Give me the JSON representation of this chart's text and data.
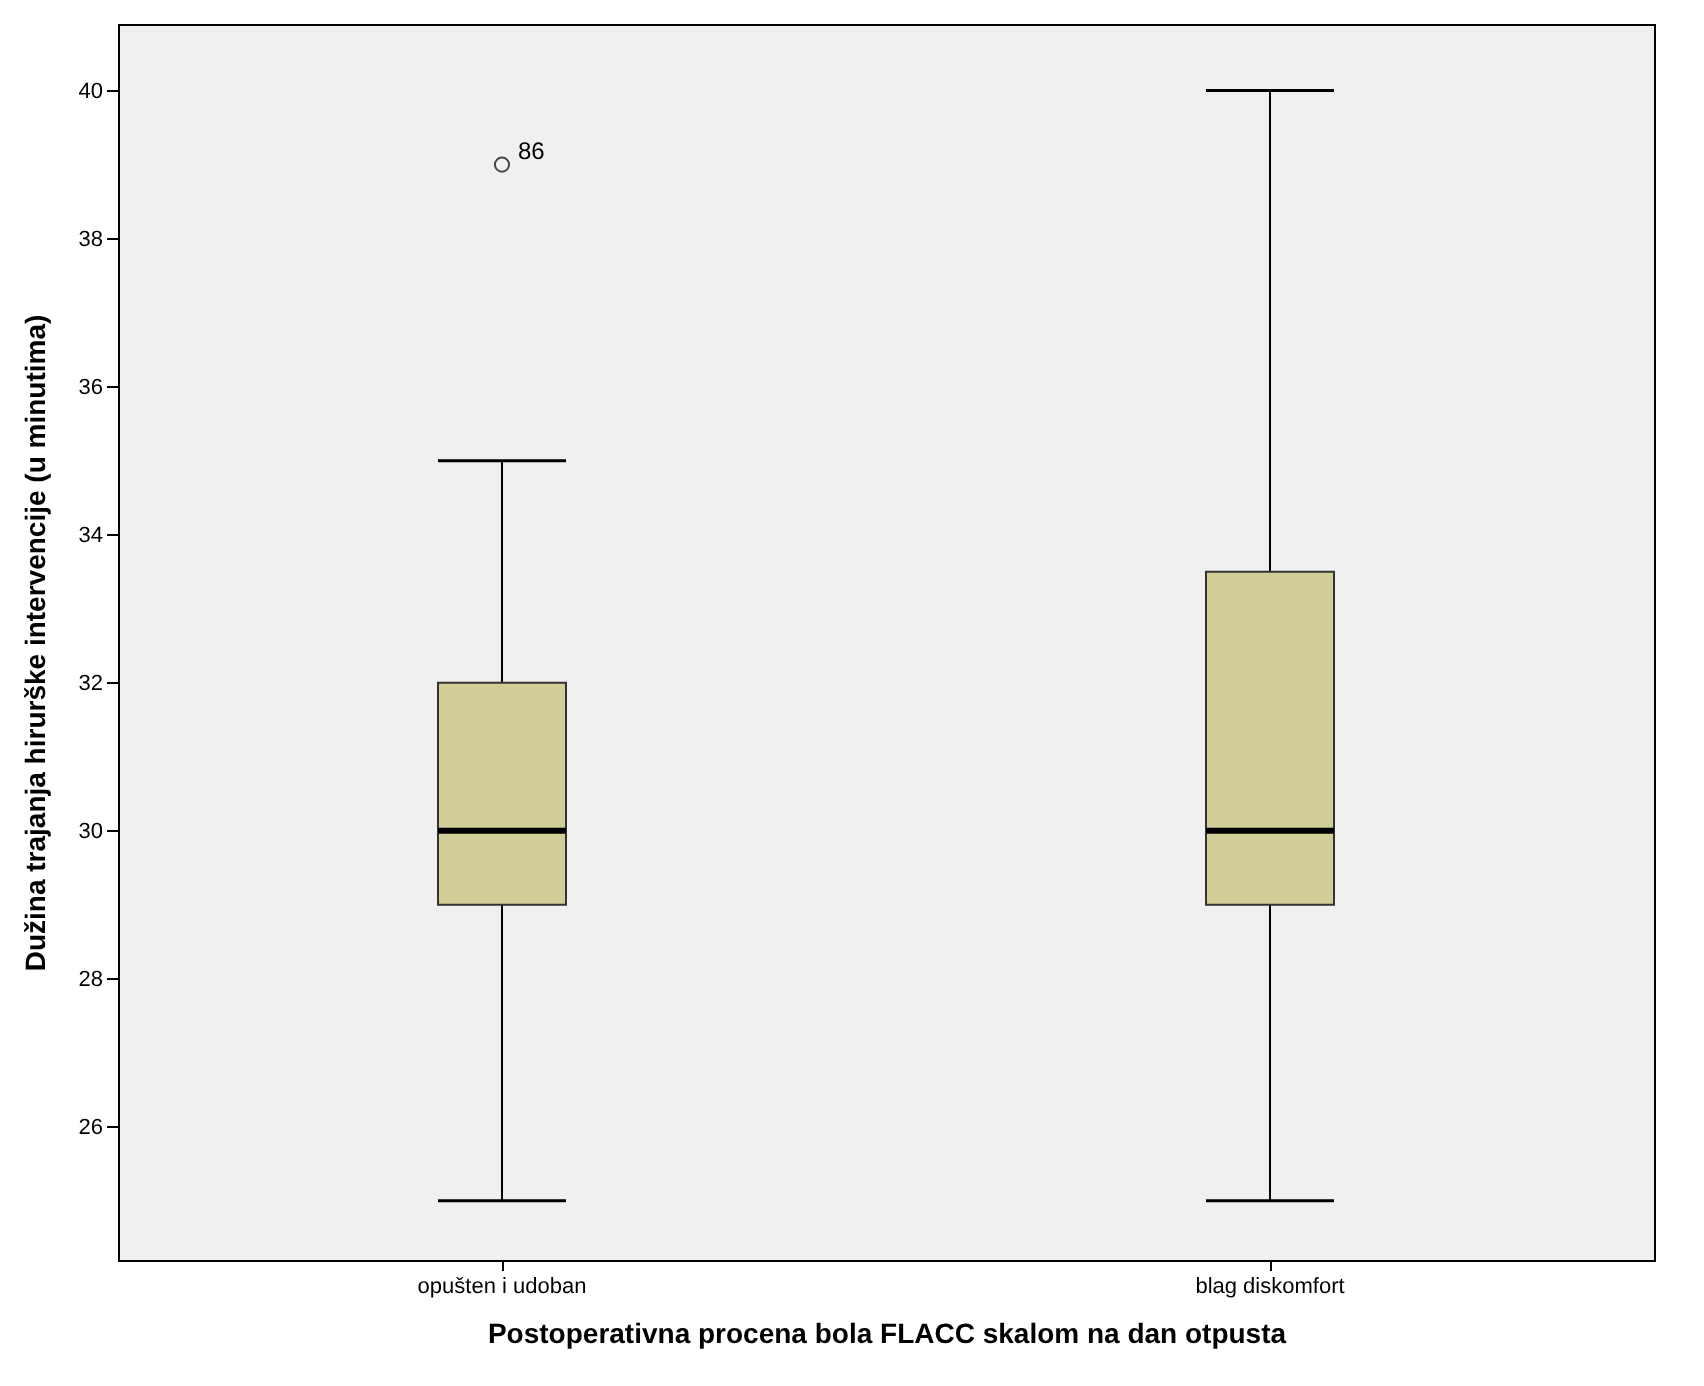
{
  "chart_data": {
    "type": "box",
    "xlabel": "Postoperativna procena bola FLACC skalom na dan otpusta",
    "ylabel": "Dužina trajanja hirurške intervencije (u minutima)",
    "categories": [
      "opušten i udoban",
      "blag diskomfort"
    ],
    "series": [
      {
        "color": "#d3ce97",
        "boxes": [
          {
            "low": 25,
            "q1": 29,
            "median": 30,
            "q3": 32,
            "high": 35,
            "outliers": [
              39
            ]
          },
          {
            "low": 25,
            "q1": 29,
            "median": 30,
            "q3": 33.5,
            "high": 40
          }
        ]
      }
    ],
    "ylim": [
      24.2,
      40.9
    ],
    "yticks": [
      26,
      28,
      30,
      32,
      34,
      36,
      38,
      40
    ],
    "grid": false,
    "annotations": [
      "86"
    ]
  }
}
